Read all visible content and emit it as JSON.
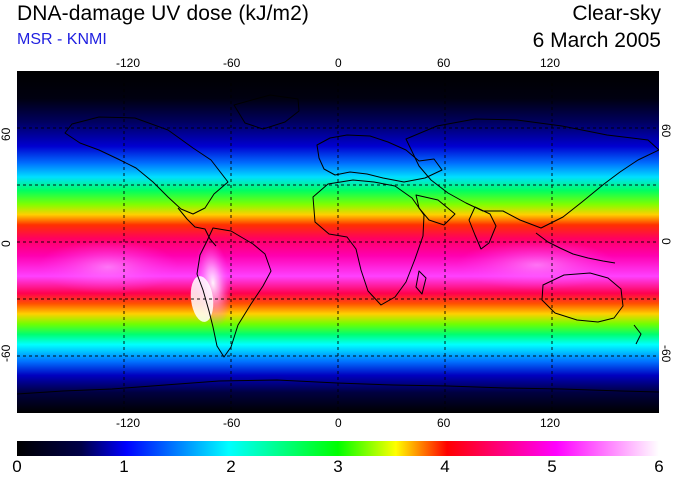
{
  "header": {
    "title": "DNA-damage UV dose (kJ/m2)",
    "subtitle": "MSR - KNMI",
    "condition": "Clear-sky",
    "date": "6 March 2005"
  },
  "map": {
    "longitude_ticks": [
      "-120",
      "-60",
      "0",
      "60",
      "120"
    ],
    "latitude_ticks": [
      "60",
      "0",
      "-60"
    ],
    "projection": "equirectangular",
    "gridlines": "dashed",
    "background_color": "#000000",
    "coastline_color": "#000000"
  },
  "colorbar": {
    "labels": [
      "0",
      "1",
      "2",
      "3",
      "4",
      "5",
      "6"
    ],
    "min": 0,
    "max": 6,
    "colors": [
      "#000000",
      "#0000ff",
      "#00ffff",
      "#00ff00",
      "#ffff00",
      "#ff0000",
      "#ff00ff",
      "#ffffff"
    ]
  }
}
